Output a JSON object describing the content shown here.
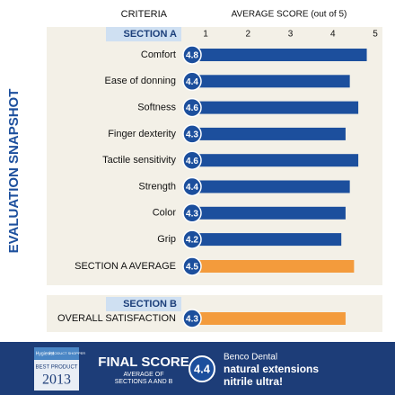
{
  "chart_data": {
    "type": "bar",
    "orientation": "horizontal",
    "title": "EVALUATION SNAPSHOT",
    "category_header": "CRITERIA",
    "value_header": "AVERAGE SCORE (out of 5)",
    "xlim": [
      1,
      5
    ],
    "xticks": [
      1,
      2,
      3,
      4,
      5
    ],
    "grid": false,
    "sections": [
      {
        "name": "SECTION A",
        "color": "#1c4f9d",
        "categories": [
          "Comfort",
          "Ease of donning",
          "Softness",
          "Finger dexterity",
          "Tactile sensitivity",
          "Strength",
          "Color",
          "Grip"
        ],
        "values": [
          4.8,
          4.4,
          4.6,
          4.3,
          4.6,
          4.4,
          4.3,
          4.2
        ],
        "average": {
          "name": "SECTION A AVERAGE",
          "value": 4.5,
          "color": "#f39b3c"
        }
      },
      {
        "name": "SECTION B",
        "color": "#f39b3c",
        "categories": [
          "OVERALL SATISFACTION"
        ],
        "values": [
          4.3
        ]
      }
    ]
  },
  "footer": {
    "badge": [
      "Hygienist",
      "PRODUCT SHOPPER",
      "BEST PRODUCT",
      "2013"
    ],
    "title": "FINAL SCORE",
    "subtitle_lines": [
      "AVERAGE OF",
      "SECTIONS A AND B"
    ],
    "score": 4.4,
    "brand": "Benco Dental",
    "product_lines": [
      "natural extensions",
      "nitrile ultra!"
    ]
  }
}
